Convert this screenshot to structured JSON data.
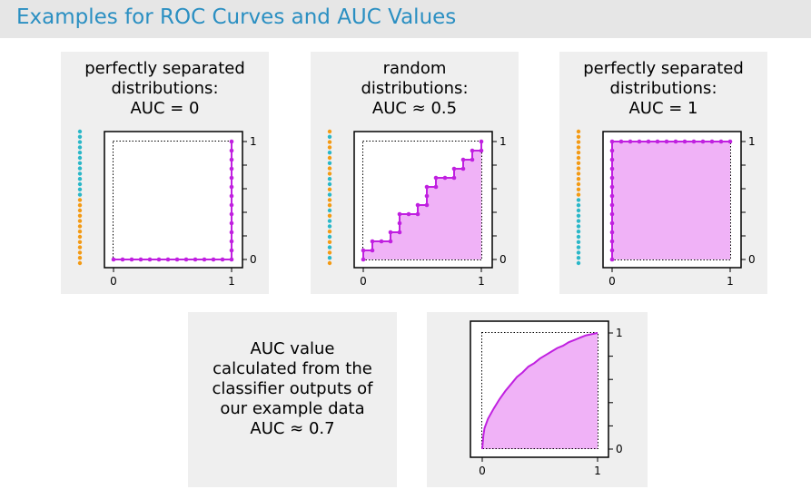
{
  "header": {
    "title": "Examples for ROC Curves and AUC Values"
  },
  "colors": {
    "accent": "#2a8fc2",
    "curve": "#c020e0",
    "fill": "#f0b2f7",
    "positive": "#2ab7c8",
    "negative": "#f39a14"
  },
  "panels": [
    {
      "caption": [
        "perfectly separated",
        "distributions:",
        "AUC = 0"
      ],
      "dots": [
        "#2ab7c8",
        "#2ab7c8",
        "#2ab7c8",
        "#2ab7c8",
        "#2ab7c8",
        "#2ab7c8",
        "#2ab7c8",
        "#2ab7c8",
        "#2ab7c8",
        "#2ab7c8",
        "#2ab7c8",
        "#2ab7c8",
        "#2ab7c8",
        "#f39a14",
        "#f39a14",
        "#f39a14",
        "#f39a14",
        "#f39a14",
        "#f39a14",
        "#f39a14",
        "#f39a14",
        "#f39a14",
        "#f39a14",
        "#f39a14",
        "#f39a14",
        "#f39a14"
      ],
      "ticks": {
        "x0": "0",
        "x1": "1",
        "y0": "0",
        "y1": "1"
      },
      "chart_data": {
        "type": "line",
        "steps": "R,R,R,R,R,R,R,R,R,R,R,R,R,U,U,U,U,U,U,U,U,U,U,U,U,U",
        "auc": 0,
        "xlim": [
          0,
          1
        ],
        "ylim": [
          0,
          1
        ]
      }
    },
    {
      "caption": [
        "random",
        "distributions:",
        "AUC ≈ 0.5"
      ],
      "dots": [
        "#f39a14",
        "#2ab7c8",
        "#f39a14",
        "#f39a14",
        "#2ab7c8",
        "#f39a14",
        "#2ab7c8",
        "#f39a14",
        "#f39a14",
        "#2ab7c8",
        "#2ab7c8",
        "#f39a14",
        "#2ab7c8",
        "#f39a14",
        "#f39a14",
        "#2ab7c8",
        "#f39a14",
        "#2ab7c8",
        "#2ab7c8",
        "#f39a14",
        "#2ab7c8",
        "#f39a14",
        "#2ab7c8",
        "#f39a14",
        "#2ab7c8",
        "#f39a14"
      ],
      "ticks": {
        "x0": "0",
        "x1": "1",
        "y0": "0",
        "y1": "1"
      },
      "chart_data": {
        "type": "line",
        "steps": "U,R,U,R,R,U,R,U,U,R,R,U,R,U,U,R,U,R,R,U,R,U,R,U,R,U",
        "auc": 0.5,
        "xlim": [
          0,
          1
        ],
        "ylim": [
          0,
          1
        ]
      }
    },
    {
      "caption": [
        "perfectly separated",
        "distributions:",
        "AUC = 1"
      ],
      "dots": [
        "#f39a14",
        "#f39a14",
        "#f39a14",
        "#f39a14",
        "#f39a14",
        "#f39a14",
        "#f39a14",
        "#f39a14",
        "#f39a14",
        "#f39a14",
        "#f39a14",
        "#f39a14",
        "#f39a14",
        "#2ab7c8",
        "#2ab7c8",
        "#2ab7c8",
        "#2ab7c8",
        "#2ab7c8",
        "#2ab7c8",
        "#2ab7c8",
        "#2ab7c8",
        "#2ab7c8",
        "#2ab7c8",
        "#2ab7c8",
        "#2ab7c8",
        "#2ab7c8"
      ],
      "ticks": {
        "x0": "0",
        "x1": "1",
        "y0": "0",
        "y1": "1"
      },
      "chart_data": {
        "type": "line",
        "steps": "U,U,U,U,U,U,U,U,U,U,U,U,U,R,R,R,R,R,R,R,R,R,R,R,R,R",
        "auc": 1,
        "xlim": [
          0,
          1
        ],
        "ylim": [
          0,
          1
        ]
      }
    }
  ],
  "example": {
    "caption": [
      "AUC value",
      "calculated from the",
      "classifier outputs of",
      "our example data",
      "AUC ≈ 0.7"
    ],
    "ticks": {
      "x0": "0",
      "x1": "1",
      "y0": "0",
      "y1": "1"
    },
    "chart_data": {
      "type": "area",
      "x": [
        0,
        0.01,
        0.02,
        0.05,
        0.1,
        0.15,
        0.2,
        0.25,
        0.3,
        0.35,
        0.4,
        0.45,
        0.5,
        0.55,
        0.6,
        0.65,
        0.7,
        0.75,
        0.8,
        0.85,
        0.9,
        0.95,
        1.0
      ],
      "y": [
        0,
        0.12,
        0.18,
        0.26,
        0.35,
        0.43,
        0.5,
        0.56,
        0.62,
        0.66,
        0.71,
        0.74,
        0.78,
        0.81,
        0.84,
        0.87,
        0.89,
        0.92,
        0.94,
        0.96,
        0.98,
        0.99,
        1.0
      ],
      "auc": 0.7,
      "xlim": [
        0,
        1
      ],
      "ylim": [
        0,
        1
      ]
    }
  }
}
